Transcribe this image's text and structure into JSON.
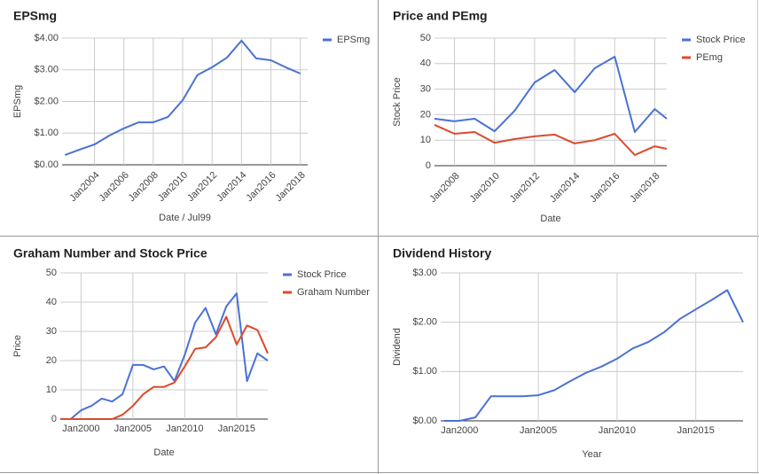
{
  "chart_data": [
    {
      "type": "line",
      "title": "EPSmg",
      "x_label": "Date / Jul99",
      "y_label": "EPSmg",
      "grid": true,
      "legend": "right",
      "rotate_x_labels": true,
      "x": [
        2002,
        2003,
        2004,
        2005,
        2006,
        2007,
        2008,
        2009,
        2010,
        2011,
        2012,
        2013,
        2014,
        2015,
        2016,
        2017,
        2018
      ],
      "xlim": [
        2001.8,
        2018.5
      ],
      "xticks": [
        {
          "value": 2004,
          "label": "Jan2004"
        },
        {
          "value": 2006,
          "label": "Jan2006"
        },
        {
          "value": 2008,
          "label": "Jan2008"
        },
        {
          "value": 2010,
          "label": "Jan2010"
        },
        {
          "value": 2012,
          "label": "Jan2012"
        },
        {
          "value": 2014,
          "label": "Jan2014"
        },
        {
          "value": 2016,
          "label": "Jan2016"
        },
        {
          "value": 2018,
          "label": "Jan2018"
        }
      ],
      "ylim": [
        0,
        4
      ],
      "yticks": [
        {
          "value": 0,
          "label": "$0.00"
        },
        {
          "value": 1,
          "label": "$1.00"
        },
        {
          "value": 2,
          "label": "$2.00"
        },
        {
          "value": 3,
          "label": "$3.00"
        },
        {
          "value": 4,
          "label": "$4.00"
        }
      ],
      "series": [
        {
          "name": "EPSmg",
          "color": "#4a72d4",
          "values": [
            0.31,
            0.48,
            0.64,
            0.92,
            1.15,
            1.34,
            1.34,
            1.51,
            2.04,
            2.83,
            3.08,
            3.38,
            3.92,
            3.36,
            3.3,
            3.08,
            2.88
          ]
        }
      ]
    },
    {
      "type": "line",
      "title": "Price and PEmg",
      "x_label": "Date",
      "y_label": "Stock Price",
      "grid": true,
      "legend": "right",
      "rotate_x_labels": true,
      "x": [
        2007,
        2008,
        2009,
        2010,
        2011,
        2012,
        2013,
        2014,
        2015,
        2016,
        2017,
        2018,
        2018.6
      ],
      "xlim": [
        2007,
        2018.6
      ],
      "xticks": [
        {
          "value": 2008,
          "label": "Jan2008"
        },
        {
          "value": 2010,
          "label": "Jan2010"
        },
        {
          "value": 2012,
          "label": "Jan2012"
        },
        {
          "value": 2014,
          "label": "Jan2014"
        },
        {
          "value": 2016,
          "label": "Jan2016"
        },
        {
          "value": 2018,
          "label": "Jan2018"
        }
      ],
      "ylim": [
        0,
        50
      ],
      "yticks": [
        0,
        10,
        20,
        30,
        40,
        50
      ],
      "series": [
        {
          "name": "Stock Price",
          "color": "#4a72d4",
          "values": [
            18.4,
            17.4,
            18.4,
            13.5,
            21.5,
            32.6,
            37.5,
            28.8,
            38.2,
            42.7,
            13.2,
            22.2,
            18.4
          ]
        },
        {
          "name": "PEmg",
          "color": "#dc4a2c",
          "values": [
            16,
            12.5,
            13.2,
            9,
            10.4,
            11.5,
            12.2,
            8.7,
            10,
            12.5,
            4.2,
            7.6,
            6.6
          ]
        }
      ]
    },
    {
      "type": "line",
      "title": "Graham Number and Stock Price",
      "x_label": "Date",
      "y_label": "Price",
      "grid": true,
      "legend": "right",
      "rotate_x_labels": false,
      "x": [
        1998,
        1999,
        2000,
        2001,
        2002,
        2003,
        2004,
        2005,
        2006,
        2007,
        2008,
        2009,
        2010,
        2011,
        2012,
        2013,
        2014,
        2015,
        2016,
        2017,
        2018
      ],
      "xlim": [
        1998,
        2018
      ],
      "xticks": [
        {
          "value": 2000,
          "label": "Jan2000"
        },
        {
          "value": 2005,
          "label": "Jan2005"
        },
        {
          "value": 2010,
          "label": "Jan2010"
        },
        {
          "value": 2015,
          "label": "Jan2015"
        }
      ],
      "ylim": [
        0,
        50
      ],
      "yticks": [
        0,
        10,
        20,
        30,
        40,
        50
      ],
      "series": [
        {
          "name": "Stock Price",
          "color": "#4a72d4",
          "values": [
            0,
            0,
            3,
            4.5,
            7,
            6,
            8.5,
            18.5,
            18.5,
            17,
            18,
            13,
            22,
            33,
            38,
            29,
            38.5,
            43,
            13,
            22.5,
            20
          ]
        },
        {
          "name": "Graham Number",
          "color": "#dc4a2c",
          "values": [
            0,
            0,
            0,
            0,
            0,
            0,
            1.5,
            4.5,
            8.5,
            11,
            11,
            12.5,
            18,
            24,
            24.5,
            28,
            35,
            25.5,
            32,
            30.5,
            22.5
          ]
        }
      ]
    },
    {
      "type": "line",
      "title": "Dividend History",
      "x_label": "Year",
      "y_label": "Dividend",
      "grid": true,
      "rotate_x_labels": false,
      "x": [
        1999,
        2000,
        2001,
        2002,
        2003,
        2004,
        2005,
        2006,
        2007,
        2008,
        2009,
        2010,
        2011,
        2012,
        2013,
        2014,
        2015,
        2016,
        2017,
        2018
      ],
      "xlim": [
        1998.8,
        2018
      ],
      "xticks": [
        {
          "value": 2000,
          "label": "Jan2000"
        },
        {
          "value": 2005,
          "label": "Jan2005"
        },
        {
          "value": 2010,
          "label": "Jan2010"
        },
        {
          "value": 2015,
          "label": "Jan2015"
        }
      ],
      "ylim": [
        0,
        3
      ],
      "yticks": [
        {
          "value": 0,
          "label": "$0.00"
        },
        {
          "value": 1,
          "label": "$1.00"
        },
        {
          "value": 2,
          "label": "$2.00"
        },
        {
          "value": 3,
          "label": "$3.00"
        }
      ],
      "color": "#4a72d4",
      "values": [
        0,
        0,
        0.07,
        0.5,
        0.5,
        0.5,
        0.52,
        0.62,
        0.8,
        0.97,
        1.1,
        1.26,
        1.47,
        1.6,
        1.8,
        2.07,
        2.26,
        2.45,
        2.65,
        2.0
      ]
    }
  ]
}
